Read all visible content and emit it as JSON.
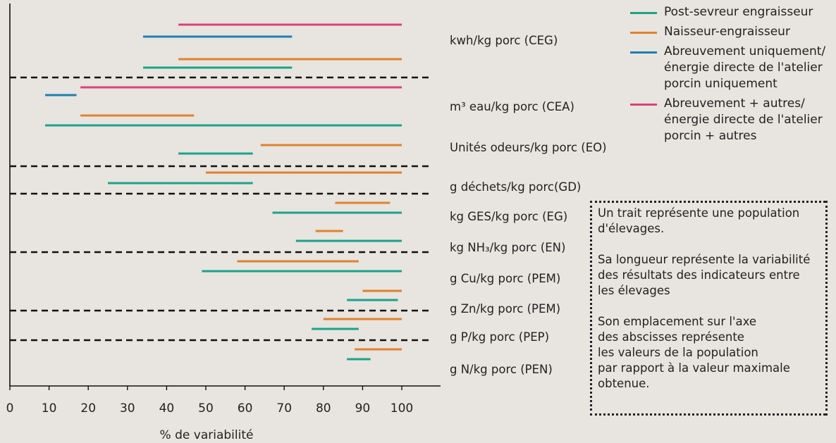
{
  "chart_data": {
    "type": "range",
    "xlabel": "% de variabilité",
    "x_ticks": [
      0,
      10,
      20,
      30,
      40,
      50,
      60,
      70,
      80,
      90,
      100
    ],
    "xlim": [
      0,
      110
    ],
    "series": [
      {
        "name": "Post-sevreur engraisseur",
        "color": "#1aa38a"
      },
      {
        "name": "Naisseur-engraisseur",
        "color": "#e0822e"
      },
      {
        "name": "Abreuvement uniquement/\nénergie directe de l'atelier\n porcin uniquement",
        "color": "#1e7fb0"
      },
      {
        "name": "Abreuvement + autres/\nénergie directe de l'atelier\nporcin + autres",
        "color": "#d9437a"
      }
    ],
    "categories": [
      "kwh/kg porc (CEG)",
      "m³ eau/kg porc (CEA)",
      "Unités odeurs/kg porc (EO)",
      "g déchets/kg porc(GD)",
      "kg GES/kg porc (EG)",
      "kg NH₃/kg porc (EN)",
      "g Cu/kg porc (PEM)",
      "g Zn/kg porc (PEM)",
      "g P/kg porc (PEP)",
      "g N/kg porc (PEN)"
    ],
    "segments": [
      {
        "category": "kwh/kg porc (CEG)",
        "series": 3,
        "start": 43,
        "end": 100
      },
      {
        "category": "kwh/kg porc (CEG)",
        "series": 2,
        "start": 34,
        "end": 72
      },
      {
        "category": "kwh/kg porc (CEG)",
        "series": 1,
        "start": 43,
        "end": 100
      },
      {
        "category": "kwh/kg porc (CEG)",
        "series": 0,
        "start": 34,
        "end": 72
      },
      {
        "category": "m³ eau/kg porc (CEA)",
        "series": 2,
        "start": 9,
        "end": 17
      },
      {
        "category": "m³ eau/kg porc (CEA)",
        "series": 3,
        "start": 18,
        "end": 100
      },
      {
        "category": "m³ eau/kg porc (CEA)",
        "series": 1,
        "start": 18,
        "end": 47
      },
      {
        "category": "m³ eau/kg porc (CEA)",
        "series": 0,
        "start": 9,
        "end": 100
      },
      {
        "category": "Unités odeurs/kg porc (EO)",
        "series": 1,
        "start": 64,
        "end": 100
      },
      {
        "category": "Unités odeurs/kg porc (EO)",
        "series": 0,
        "start": 43,
        "end": 62
      },
      {
        "category": "g déchets/kg porc(GD)",
        "series": 1,
        "start": 50,
        "end": 100
      },
      {
        "category": "g déchets/kg porc(GD)",
        "series": 0,
        "start": 25,
        "end": 62
      },
      {
        "category": "kg GES/kg porc (EG)",
        "series": 1,
        "start": 83,
        "end": 97
      },
      {
        "category": "kg GES/kg porc (EG)",
        "series": 0,
        "start": 67,
        "end": 100
      },
      {
        "category": "kg NH₃/kg porc (EN)",
        "series": 1,
        "start": 78,
        "end": 85
      },
      {
        "category": "kg NH₃/kg porc (EN)",
        "series": 0,
        "start": 73,
        "end": 100
      },
      {
        "category": "g Cu/kg porc (PEM)",
        "series": 1,
        "start": 58,
        "end": 89
      },
      {
        "category": "g Cu/kg porc (PEM)",
        "series": 0,
        "start": 49,
        "end": 100
      },
      {
        "category": "g Zn/kg porc (PEM)",
        "series": 1,
        "start": 90,
        "end": 100
      },
      {
        "category": "g Zn/kg porc (PEM)",
        "series": 0,
        "start": 86,
        "end": 99
      },
      {
        "category": "g P/kg porc (PEP)",
        "series": 1,
        "start": 80,
        "end": 100
      },
      {
        "category": "g P/kg porc (PEP)",
        "series": 0,
        "start": 77,
        "end": 89
      },
      {
        "category": "g N/kg porc (PEN)",
        "series": 1,
        "start": 88,
        "end": 100
      },
      {
        "category": "g N/kg porc (PEN)",
        "series": 0,
        "start": 86,
        "end": 92
      }
    ]
  },
  "note": {
    "paragraphs": [
      "Un trait représente une population\nd'élevages.",
      "Sa longueur représente la variabilité\ndes résultats des indicateurs entre\nles élevages",
      "Son emplacement sur l'axe\ndes abscisses représente\nles valeurs de la population\npar rapport à la valeur maximale\nobtenue."
    ]
  }
}
